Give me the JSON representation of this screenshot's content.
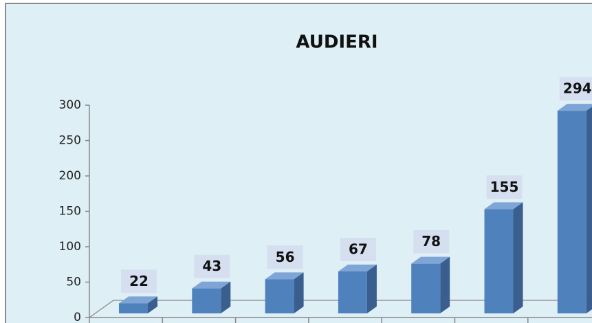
{
  "chart_data": {
    "type": "bar3d",
    "title": "AUDIERI",
    "categories": [
      null,
      null,
      null,
      null,
      null,
      null,
      null
    ],
    "values": [
      22,
      43,
      56,
      67,
      78,
      155,
      294
    ],
    "color": "#4f81bd",
    "ylim": [
      0,
      300
    ],
    "yticks": [
      0,
      50,
      100,
      150,
      200,
      250,
      300
    ]
  }
}
